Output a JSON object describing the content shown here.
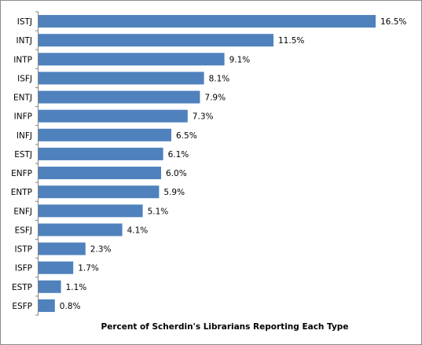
{
  "chart_data": {
    "type": "bar",
    "orientation": "horizontal",
    "categories": [
      "ISTJ",
      "INTJ",
      "INTP",
      "ISFJ",
      "ENTJ",
      "INFP",
      "INFJ",
      "ESTJ",
      "ENFP",
      "ENTP",
      "ENFJ",
      "ESFJ",
      "ISTP",
      "ISFP",
      "ESTP",
      "ESFP"
    ],
    "values": [
      16.5,
      11.5,
      9.1,
      8.1,
      7.9,
      7.3,
      6.5,
      6.1,
      6.0,
      5.9,
      5.1,
      4.1,
      2.3,
      1.7,
      1.1,
      0.8
    ],
    "value_labels": [
      "16.5%",
      "11.5%",
      "9.1%",
      "8.1%",
      "7.9%",
      "7.3%",
      "6.5%",
      "6.1%",
      "6.0%",
      "5.9%",
      "5.1%",
      "4.1%",
      "2.3%",
      "1.7%",
      "1.1%",
      "0.8%"
    ],
    "title": "",
    "xlabel": "Percent of Scherdin's Librarians Reporting Each Type",
    "ylabel": "",
    "xlim": [
      0,
      20
    ],
    "grid": false,
    "legend": "none",
    "bar_color": "#4f81bd"
  }
}
